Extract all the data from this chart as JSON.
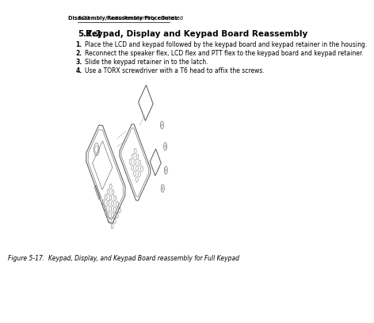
{
  "page_number": "5-20",
  "header_bold": "Disassembly/Reassembly Procedures:",
  "header_normal": " Radio Reassembly - Detailed",
  "section_number": "5.7.2",
  "section_title": "Keypad, Display and Keypad Board Reassembly",
  "steps": [
    "Place the LCD and keypad followed by the keypad board and keypad retainer in the housing.",
    "Reconnect the speaker flex, LCD flex and PTT flex to the keypad board and keypad retainer.",
    "Slide the keypad retainer in to the latch.",
    "Use a TORX screwdriver with a T6 head to affix the screws."
  ],
  "figure_caption": "Figure 5-17.  Keypad, Display, and Keypad Board reassembly for Full Keypad",
  "bg_color": "#ffffff",
  "text_color": "#000000",
  "diagram_color": "#555555",
  "body_font_size": 5.5,
  "section_font_size": 7.5,
  "header_font_size": 4.8,
  "caption_font_size": 5.5
}
